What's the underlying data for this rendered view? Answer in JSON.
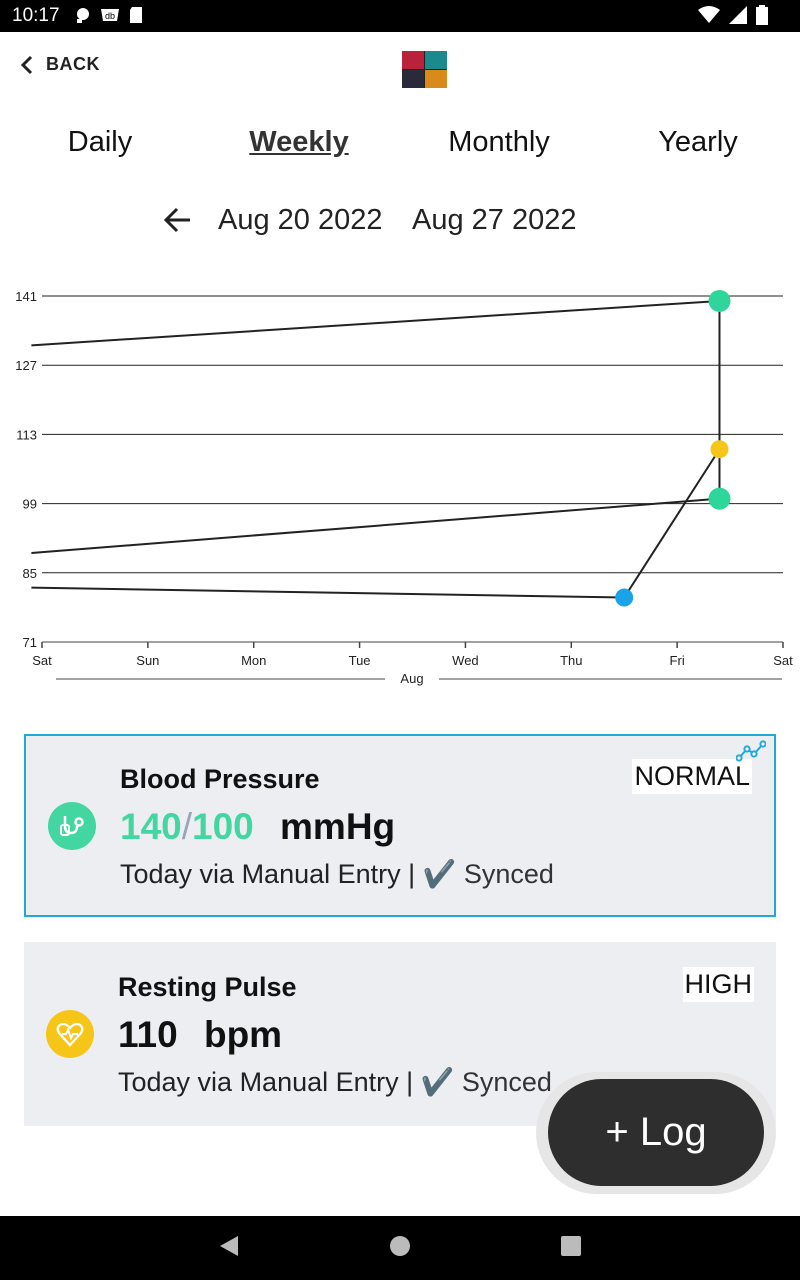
{
  "status_bar": {
    "time": "10:17",
    "left_icons": [
      "notification-icon",
      "vpn-icon",
      "app-icon",
      "sd-card-icon"
    ],
    "right_icons": [
      "wifi-icon",
      "signal-icon",
      "battery-icon"
    ]
  },
  "header": {
    "back_label": "BACK",
    "logo": "app-logo"
  },
  "tabs": [
    {
      "label": "Daily",
      "active": false
    },
    {
      "label": "Weekly",
      "active": true
    },
    {
      "label": "Monthly",
      "active": false
    },
    {
      "label": "Yearly",
      "active": false
    }
  ],
  "date_range": {
    "start": "Aug 20 2022",
    "end": "Aug 27 2022"
  },
  "chart_data": {
    "type": "line",
    "y_ticks": [
      "141",
      "127",
      "113",
      "99",
      "85",
      "71"
    ],
    "ylim": [
      71,
      141
    ],
    "x_ticks": [
      "Sat",
      "Sun",
      "Mon",
      "Tue",
      "Wed",
      "Thu",
      "Fri",
      "Sat"
    ],
    "month_label": "Aug",
    "grid": true,
    "series": [
      {
        "color": "#2ed69c",
        "x": [
          -0.1,
          6.4
        ],
        "y": [
          131,
          140
        ],
        "marker_index": 1
      },
      {
        "color": "#2ed69c",
        "x": [
          -0.1,
          6.4
        ],
        "y": [
          89,
          100
        ],
        "marker_index": 1
      },
      {
        "color": "#f5c518",
        "x": [
          5.5,
          6.4
        ],
        "y": [
          80,
          110
        ],
        "marker_index": 1
      },
      {
        "color": "#1aa3e8",
        "x": [
          -0.1,
          5.5
        ],
        "y": [
          82,
          80
        ],
        "marker_index": 1
      }
    ],
    "connectors": [
      {
        "x": 6.4,
        "y1": 140,
        "y2": 100
      }
    ]
  },
  "cards": {
    "bp": {
      "title": "Blood Pressure",
      "status": "NORMAL",
      "systolic": "140",
      "separator": "/",
      "diastolic": "100",
      "unit": "mmHg",
      "source": "Today via Manual Entry |",
      "check": "✔️",
      "synced": "Synced",
      "color": "#43d6a0"
    },
    "pulse": {
      "title": "Resting Pulse",
      "status": "HIGH",
      "value": "110",
      "unit": "bpm",
      "source": "Today via Manual Entry |",
      "check": "✔️",
      "synced": "Synced",
      "color": "#f5c518"
    }
  },
  "fab": {
    "label": "+ Log"
  }
}
